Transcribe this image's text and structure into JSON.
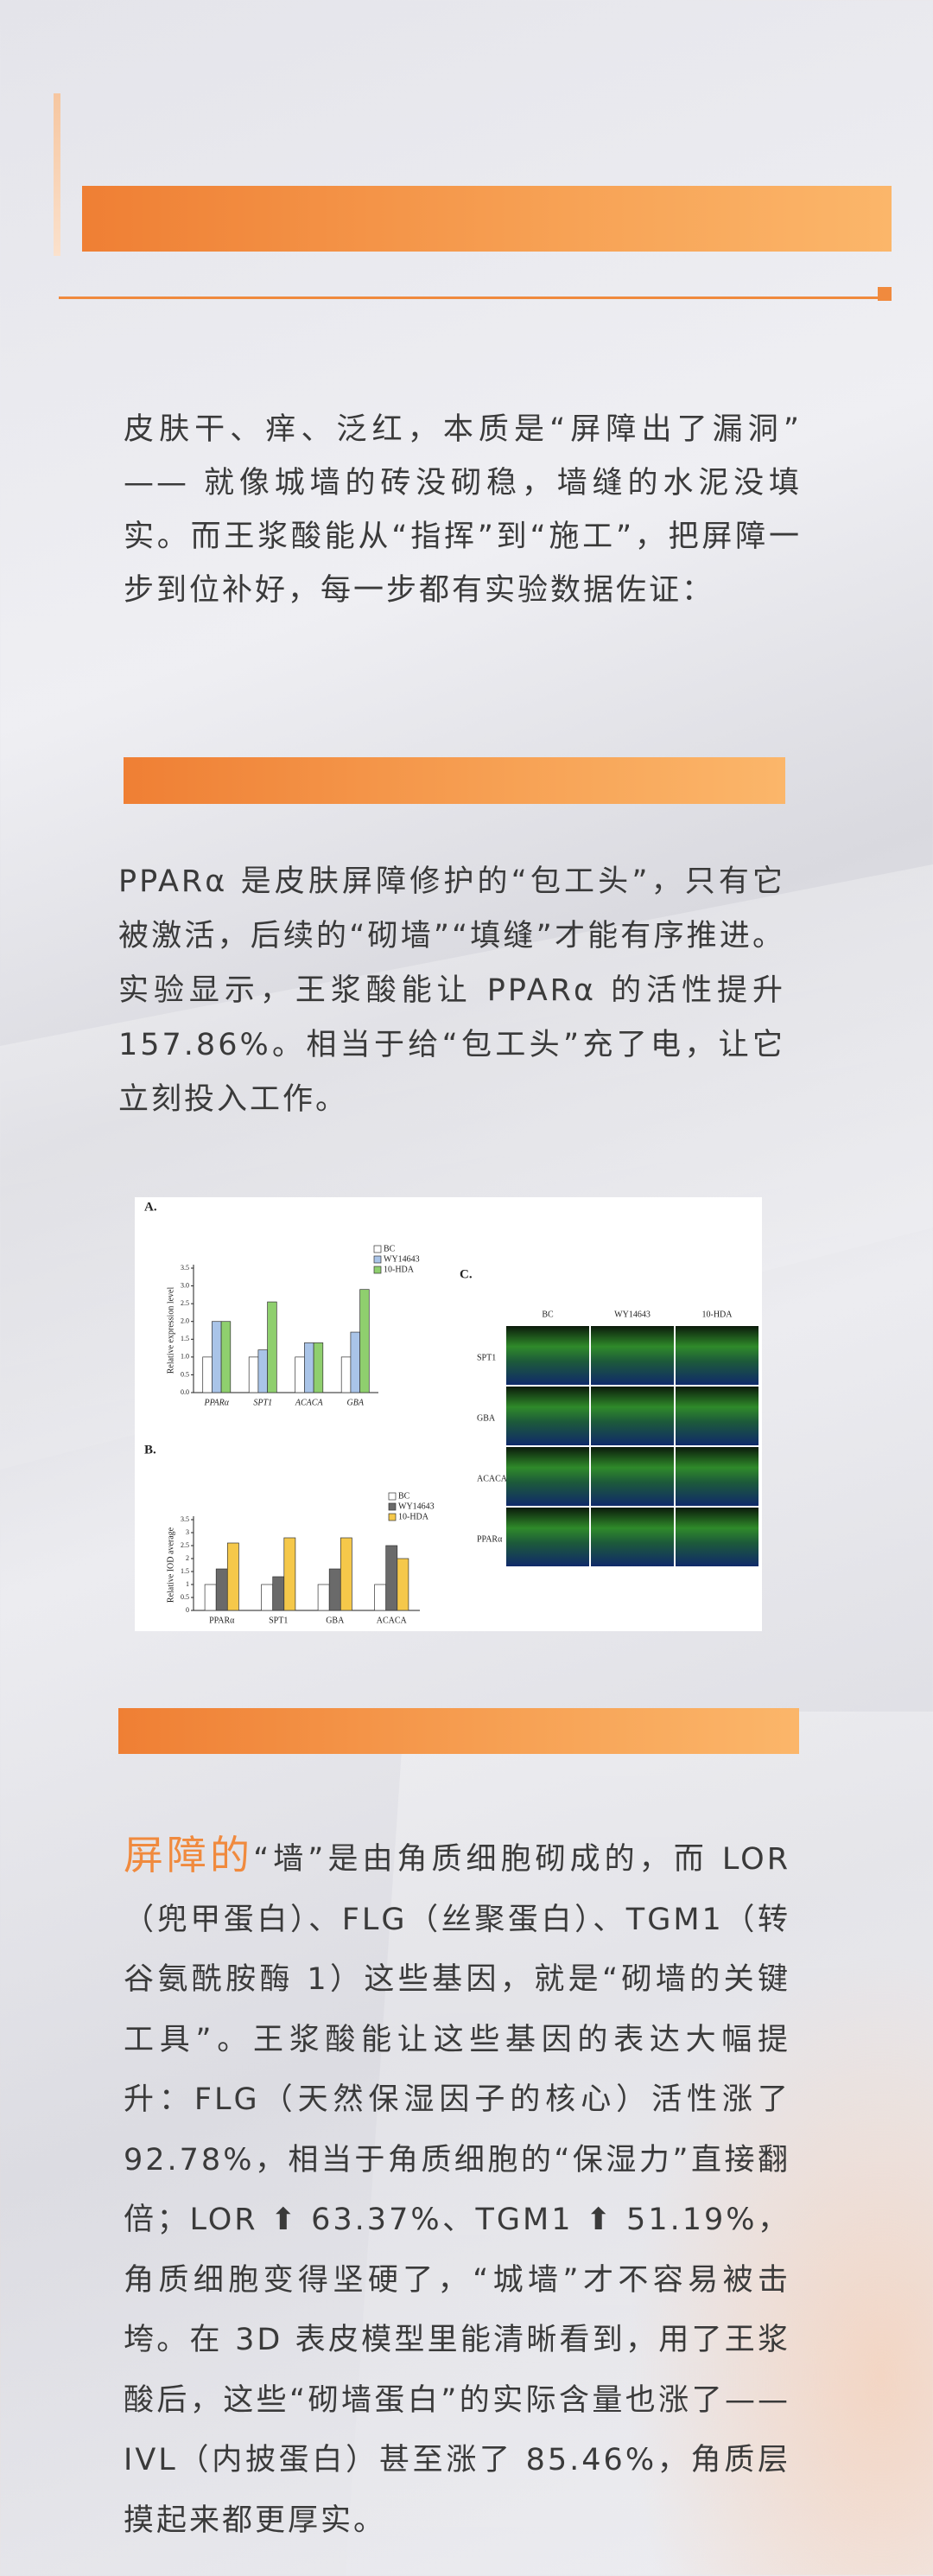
{
  "intro": {
    "text": "皮肤干、痒、泛红，本质是“屏障出了漏洞”—— 就像城墙的砖没砌稳，墙缝的水泥没填实。而王浆酸能从“指挥”到“施工”，把屏障一步到位补好，每一步都有实验数据佐证："
  },
  "section2": {
    "text": "PPARα 是皮肤屏障修护的“包工头”，只有它被激活，后续的“砌墙”“填缝”才能有序推进。实验显示，王浆酸能让 PPARα 的活性提升 157.86%。相当于给“包工头”充了电，让它立刻投入工作。"
  },
  "figure": {
    "panel_a": {
      "label": "A.",
      "y_label": "Relative expression level",
      "categories": [
        "PPARα",
        "SPT1",
        "ACACA",
        "GBA"
      ],
      "series": [
        {
          "name": "BC",
          "color": "#ffffff",
          "values": [
            1.0,
            1.0,
            1.0,
            1.0
          ]
        },
        {
          "name": "WY14643",
          "color": "#a9c4e8",
          "values": [
            2.0,
            1.2,
            1.4,
            1.7
          ]
        },
        {
          "name": "10-HDA",
          "color": "#8fcf6e",
          "values": [
            2.0,
            2.55,
            1.4,
            2.9
          ]
        }
      ],
      "ylim": [
        0,
        3.5
      ],
      "yticks": [
        {
          "value": 0,
          "label": "0.0"
        },
        0.5,
        {
          "value": 1,
          "label": "1.0"
        },
        1.5,
        {
          "value": 2,
          "label": "2.0"
        },
        2.5,
        {
          "value": 3,
          "label": "3.0"
        },
        3.5
      ]
    },
    "panel_b": {
      "label": "B.",
      "y_label": "Relative IOD average",
      "categories": [
        "PPARα",
        "SPT1",
        "GBA",
        "ACACA"
      ],
      "series": [
        {
          "name": "BC",
          "color": "#ffffff",
          "values": [
            1.0,
            1.0,
            1.0,
            1.0
          ]
        },
        {
          "name": "WY14643",
          "color": "#6a6a6a",
          "values": [
            1.6,
            1.3,
            1.6,
            2.5
          ]
        },
        {
          "name": "10-HDA",
          "color": "#f5c84a",
          "values": [
            2.6,
            2.8,
            2.8,
            2.0
          ]
        }
      ],
      "ylim": [
        0,
        3.5
      ],
      "yticks": [
        0,
        0.5,
        1,
        1.5,
        2,
        2.5,
        3,
        3.5
      ]
    },
    "panel_c": {
      "label": "C.",
      "columns": [
        "BC",
        "WY14643",
        "10-HDA"
      ],
      "rows": [
        "SPT1",
        "GBA",
        "ACACA",
        "PPARα"
      ]
    }
  },
  "section3": {
    "highlight": "屏障的",
    "text": "“墙”是由角质细胞砌成的，而 LOR（兜甲蛋白）、FLG（丝聚蛋白）、TGM1（转谷氨酰胺酶 1）这些基因，就是“砌墙的关键工具”。王浆酸能让这些基因的表达大幅提升：FLG（天然保湿因子的核心）活性涨了 92.78%，相当于角质细胞的“保湿力”直接翻倍；LOR ⬆ 63.37%、TGM1 ⬆ 51.19%，角质细胞变得坚硬了，“城墙”才不容易被击垮。在 3D 表皮模型里能清晰看到，用了王浆酸后，这些“砌墙蛋白”的实际含量也涨了——IVL（内披蛋白）甚至涨了 85.46%，角质层摸起来都更厚实。"
  }
}
